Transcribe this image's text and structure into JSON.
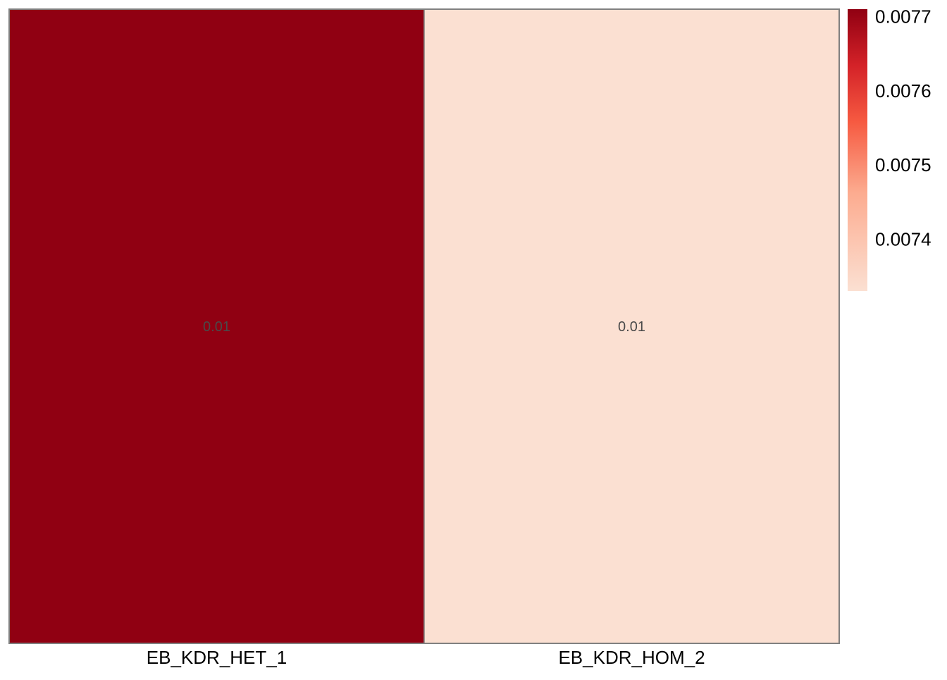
{
  "chart_data": {
    "type": "heatmap",
    "title": "",
    "xlabel": "",
    "ylabel": "",
    "columns": [
      "EB_KDR_HET_1",
      "EB_KDR_HOM_2"
    ],
    "rows": [
      ""
    ],
    "values": [
      [
        0.00771,
        0.00733
      ]
    ],
    "cell_labels": [
      [
        "0.01",
        "0.01"
      ]
    ],
    "colorbar": {
      "ticks": [
        0.0074,
        0.0075,
        0.0076,
        0.0077
      ],
      "tick_labels": [
        "0.0074",
        "0.0075",
        "0.0076",
        "0.0077"
      ],
      "range": [
        0.00733,
        0.00771
      ],
      "color_low": "#fbe0d2",
      "color_mid": "#f65a41",
      "color_high": "#900012"
    },
    "cell_border_color": "#808080",
    "legend": "right",
    "grid": false
  }
}
